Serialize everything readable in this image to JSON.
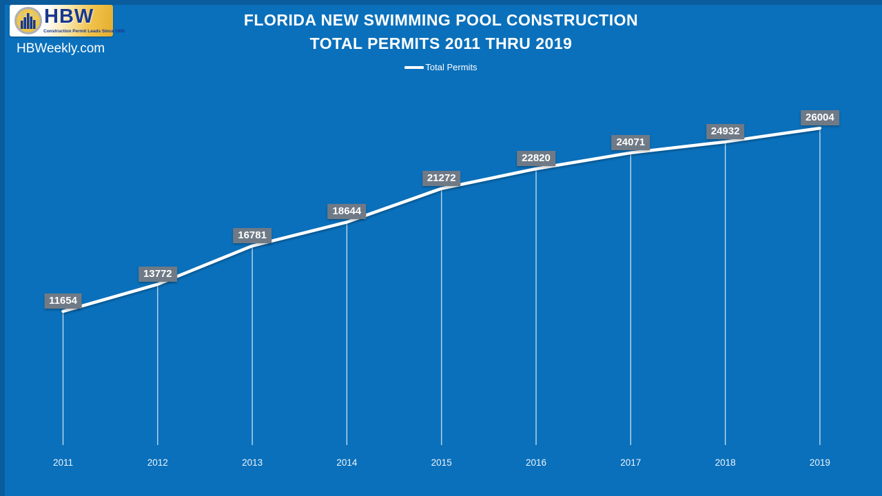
{
  "page": {
    "background_color": "#0a70bb",
    "edge_color": "#0a5c9c"
  },
  "branding": {
    "logo_text": "HBW",
    "logo_tagline": "Construction Permit Leads Since 1992",
    "logo_icon": "bar-chart-globe-icon",
    "website": "HBWeekly.com"
  },
  "chart_data": {
    "type": "line",
    "title": "FLORIDA NEW SWIMMING POOL CONSTRUCTION",
    "subtitle": "TOTAL PERMITS 2011 THRU 2019",
    "legend_position": "top",
    "grid": false,
    "categories": [
      "2011",
      "2012",
      "2013",
      "2014",
      "2015",
      "2016",
      "2017",
      "2018",
      "2019"
    ],
    "series": [
      {
        "name": "Total Permits",
        "color": "#ffffff",
        "values": [
          11654,
          13772,
          16781,
          18644,
          21272,
          22820,
          24071,
          24932,
          26004
        ]
      }
    ],
    "data_labels": true,
    "data_label_box_color": "#6f7a86",
    "data_label_text_color": "#ffffff",
    "drop_lines": true,
    "line_color": "#ffffff",
    "axis_text_color": "#eef5fb"
  }
}
